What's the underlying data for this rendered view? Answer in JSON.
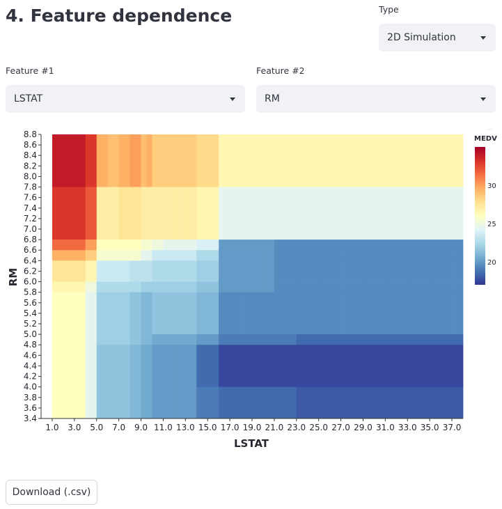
{
  "page": {
    "title": "4. Feature dependence"
  },
  "type_select": {
    "label": "Type",
    "value": "2D Simulation"
  },
  "feature1": {
    "label": "Feature #1",
    "value": "LSTAT"
  },
  "feature2": {
    "label": "Feature #2",
    "value": "RM"
  },
  "download": {
    "label": "Download (.csv)"
  },
  "chart_data": {
    "type": "heatmap",
    "xlabel": "LSTAT",
    "ylabel": "RM",
    "colorbar_title": "MEDV",
    "colorbar_range": [
      17,
      35
    ],
    "colorbar_ticks": [
      20,
      25,
      30
    ],
    "colormap": "RdYlBu",
    "x_tick_labels": [
      "1.0",
      "3.0",
      "5.0",
      "7.0",
      "9.0",
      "11.0",
      "13.0",
      "15.0",
      "17.0",
      "19.0",
      "21.0",
      "23.0",
      "25.0",
      "27.0",
      "29.0",
      "31.0",
      "33.0",
      "35.0",
      "37.0"
    ],
    "y_tick_labels": [
      "8.8",
      "8.6",
      "8.4",
      "8.2",
      "8.0",
      "7.8",
      "7.6",
      "7.4",
      "7.2",
      "7.0",
      "6.8",
      "6.6",
      "6.4",
      "6.2",
      "6.0",
      "5.8",
      "5.6",
      "5.4",
      "5.2",
      "5.0",
      "4.8",
      "4.6",
      "4.4",
      "4.2",
      "4.0",
      "3.8",
      "3.6",
      "3.4"
    ],
    "x_bins": [
      1,
      3,
      4,
      5,
      6,
      7,
      8,
      9,
      9.5,
      10,
      11,
      12,
      13,
      14,
      15,
      16,
      17,
      18,
      19,
      20,
      21,
      23,
      25,
      27,
      29,
      31,
      33,
      35,
      37,
      38
    ],
    "y_bins": [
      8.8,
      7.8,
      6.8,
      6.6,
      6.4,
      6.0,
      5.8,
      5.0,
      4.8,
      4.0,
      3.4
    ],
    "values": [
      [
        34,
        34,
        33,
        29.5,
        29,
        29.5,
        30,
        29,
        29.5,
        28.5,
        28.5,
        28.5,
        28.5,
        28,
        28,
        26.5,
        26.5,
        26.5,
        26.5,
        26.5,
        26.5,
        26.5,
        26.5,
        26.5,
        26.5,
        26.5,
        26.5,
        26.5,
        26.5
      ],
      [
        33,
        33,
        32,
        27,
        27,
        27.5,
        27.5,
        27,
        27,
        27,
        27,
        27,
        27,
        26.5,
        26.5,
        24.5,
        24.5,
        24.5,
        24.5,
        24.5,
        24.5,
        24.5,
        24.5,
        24.5,
        24.5,
        24.5,
        24.5,
        24.5,
        24.5
      ],
      [
        31.5,
        31.5,
        30,
        26,
        26,
        26,
        26,
        25.5,
        25.5,
        25,
        24.5,
        24.5,
        24.5,
        24,
        24,
        20,
        20,
        20,
        20,
        20,
        19.5,
        19.5,
        19.5,
        19.5,
        19.5,
        19.5,
        19.5,
        19.5,
        19.5
      ],
      [
        29.5,
        29.5,
        28.5,
        25.5,
        25.5,
        25.5,
        25.5,
        24.5,
        24.5,
        23.5,
        23.5,
        23.5,
        23.5,
        22.5,
        22.5,
        20,
        20,
        20,
        20,
        20,
        19.5,
        19.5,
        19.5,
        19.5,
        19.5,
        19.5,
        19.5,
        19.5,
        19.5
      ],
      [
        27.5,
        27.5,
        26.5,
        23.5,
        23.5,
        23.5,
        23,
        23,
        23,
        22.5,
        22.5,
        22.5,
        22.5,
        22,
        22,
        20,
        20,
        20,
        20,
        20,
        19.5,
        19.5,
        19.5,
        19.5,
        19.5,
        19.5,
        19.5,
        19.5,
        19.5
      ],
      [
        26.5,
        26.5,
        25,
        22.5,
        22.5,
        22.5,
        22.5,
        22,
        22,
        22,
        22,
        22,
        22,
        21.5,
        21.5,
        20,
        20,
        20,
        20,
        20,
        19.5,
        19.5,
        19.5,
        19.5,
        19.5,
        19.5,
        19.5,
        19.5,
        19.5
      ],
      [
        26,
        26,
        24.5,
        22,
        22,
        22,
        21.5,
        21,
        21,
        21.5,
        21.5,
        21.5,
        21.5,
        21,
        21,
        19.5,
        19.5,
        19.5,
        19.5,
        19.5,
        19.5,
        19.5,
        19.5,
        19.5,
        19.5,
        19.5,
        19.5,
        19.5,
        19.5
      ],
      [
        26,
        26,
        24.5,
        22,
        22,
        22,
        21.5,
        21,
        21,
        20.5,
        20.5,
        20.5,
        20.5,
        20,
        20,
        19,
        19,
        19,
        19,
        19,
        19,
        18.5,
        18.5,
        18.5,
        18.5,
        18.5,
        18.5,
        18.5,
        18.5
      ],
      [
        26,
        26,
        24.5,
        21.5,
        21.5,
        21.5,
        21,
        20.5,
        20.5,
        20,
        20,
        20,
        20,
        18.5,
        18.5,
        17.5,
        17.5,
        17.5,
        17.5,
        17.5,
        17.5,
        17.5,
        17.5,
        17.5,
        17.5,
        17.5,
        17.5,
        17.5,
        17.5
      ],
      [
        26,
        26,
        24.5,
        21.5,
        21.5,
        21.5,
        21,
        20.5,
        20.5,
        20,
        20,
        20,
        20,
        19,
        19,
        18.5,
        18.5,
        18.5,
        18.5,
        18.5,
        18.5,
        18,
        18,
        18,
        18,
        18,
        18,
        18,
        18
      ],
      [
        26,
        26,
        24.5,
        22.5,
        22.5,
        22.5,
        22,
        21.5,
        21.5,
        21.5,
        21.5,
        21.5,
        21.5,
        20,
        20,
        19.5,
        19.5,
        19.5,
        19.5,
        19.5,
        19.5,
        19,
        19,
        19,
        19,
        19,
        19,
        19,
        19
      ]
    ]
  }
}
